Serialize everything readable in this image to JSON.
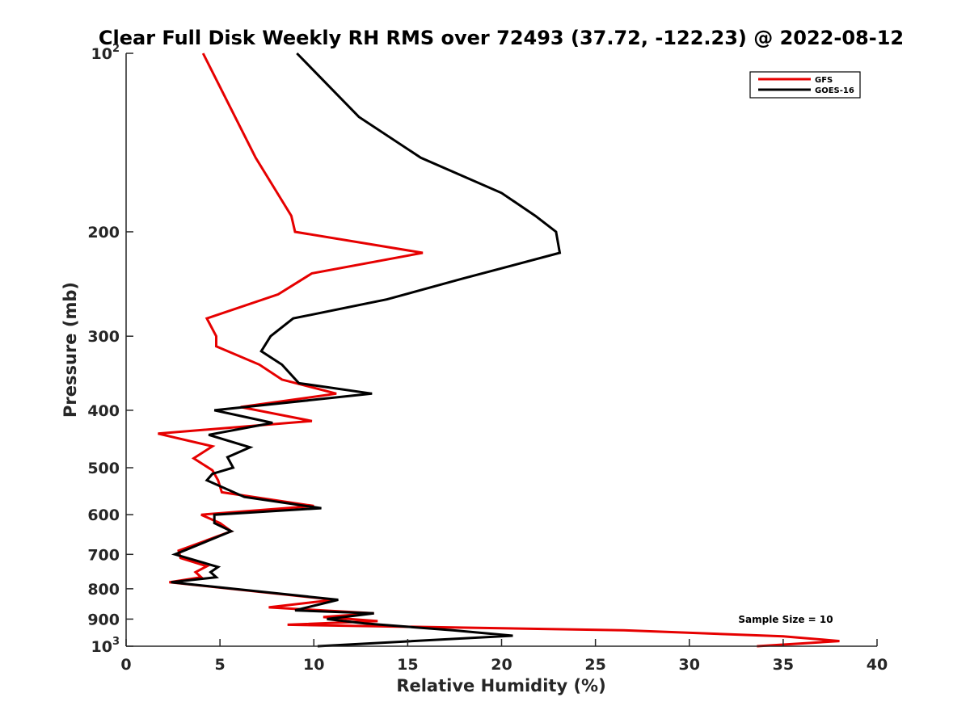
{
  "chart_data": {
    "type": "line",
    "title": "Clear Full Disk Weekly RH RMS over 72493 (37.72, -122.23) @ 2022-08-12",
    "xlabel": "Relative Humidity (%)",
    "ylabel": "Pressure (mb)",
    "xlim": [
      0,
      40
    ],
    "ylim": [
      100,
      1000
    ],
    "y_scale": "log",
    "y_reversed": true,
    "x_ticks": [
      "0",
      "5",
      "10",
      "15",
      "20",
      "25",
      "30",
      "35",
      "40"
    ],
    "y_ticks": [
      {
        "value": 100,
        "base": "10",
        "sup": "2"
      },
      {
        "value": 200,
        "label": "200"
      },
      {
        "value": 300,
        "label": "300"
      },
      {
        "value": 400,
        "label": "400"
      },
      {
        "value": 500,
        "label": "500"
      },
      {
        "value": 600,
        "label": "600"
      },
      {
        "value": 700,
        "label": "700"
      },
      {
        "value": 800,
        "label": "800"
      },
      {
        "value": 900,
        "label": "900"
      },
      {
        "value": 1000,
        "base": "10",
        "sup": "3"
      }
    ],
    "grid": false,
    "legend_position": "top-right",
    "annotation": "Sample Size = 10",
    "series": [
      {
        "name": "GFS",
        "color": "#e60000",
        "points": [
          [
            4.1,
            100
          ],
          [
            6.9,
            150
          ],
          [
            8.2,
            175
          ],
          [
            8.8,
            188
          ],
          [
            9.0,
            200
          ],
          [
            15.8,
            217
          ],
          [
            9.9,
            235
          ],
          [
            8.1,
            255
          ],
          [
            4.3,
            280
          ],
          [
            4.8,
            300
          ],
          [
            4.8,
            312
          ],
          [
            7.1,
            335
          ],
          [
            8.3,
            355
          ],
          [
            11.2,
            375
          ],
          [
            6.1,
            395
          ],
          [
            9.9,
            417
          ],
          [
            1.7,
            438
          ],
          [
            4.6,
            460
          ],
          [
            3.6,
            482
          ],
          [
            4.6,
            505
          ],
          [
            4.9,
            525
          ],
          [
            5.1,
            550
          ],
          [
            10.0,
            580
          ],
          [
            4.0,
            600
          ],
          [
            5.0,
            620
          ],
          [
            5.6,
            640
          ],
          [
            2.8,
            690
          ],
          [
            2.9,
            710
          ],
          [
            4.3,
            733
          ],
          [
            3.7,
            750
          ],
          [
            4.0,
            765
          ],
          [
            2.3,
            780
          ],
          [
            11.1,
            835
          ],
          [
            7.6,
            860
          ],
          [
            13.2,
            880
          ],
          [
            10.5,
            893
          ],
          [
            13.4,
            907
          ],
          [
            8.6,
            920
          ],
          [
            26.5,
            940
          ],
          [
            35.0,
            962
          ],
          [
            38.0,
            980
          ],
          [
            33.6,
            1000
          ]
        ]
      },
      {
        "name": "GOES-16",
        "color": "#000000",
        "points": [
          [
            9.1,
            100
          ],
          [
            12.4,
            128
          ],
          [
            15.7,
            150
          ],
          [
            20.0,
            172
          ],
          [
            21.8,
            188
          ],
          [
            22.9,
            200
          ],
          [
            23.1,
            217
          ],
          [
            17.9,
            240
          ],
          [
            13.9,
            260
          ],
          [
            8.9,
            280
          ],
          [
            7.7,
            300
          ],
          [
            7.2,
            318
          ],
          [
            8.3,
            335
          ],
          [
            9.2,
            360
          ],
          [
            13.1,
            375
          ],
          [
            4.7,
            400
          ],
          [
            7.8,
            420
          ],
          [
            4.4,
            440
          ],
          [
            6.6,
            462
          ],
          [
            5.4,
            480
          ],
          [
            5.7,
            500
          ],
          [
            4.6,
            512
          ],
          [
            4.3,
            525
          ],
          [
            6.3,
            560
          ],
          [
            10.4,
            585
          ],
          [
            4.7,
            600
          ],
          [
            4.7,
            620
          ],
          [
            5.6,
            640
          ],
          [
            2.6,
            700
          ],
          [
            4.9,
            735
          ],
          [
            4.5,
            750
          ],
          [
            4.8,
            765
          ],
          [
            2.4,
            780
          ],
          [
            11.3,
            835
          ],
          [
            9.0,
            870
          ],
          [
            13.2,
            880
          ],
          [
            10.7,
            900
          ],
          [
            12.7,
            915
          ],
          [
            17.4,
            940
          ],
          [
            20.6,
            960
          ],
          [
            10.2,
            1000
          ]
        ]
      }
    ]
  }
}
